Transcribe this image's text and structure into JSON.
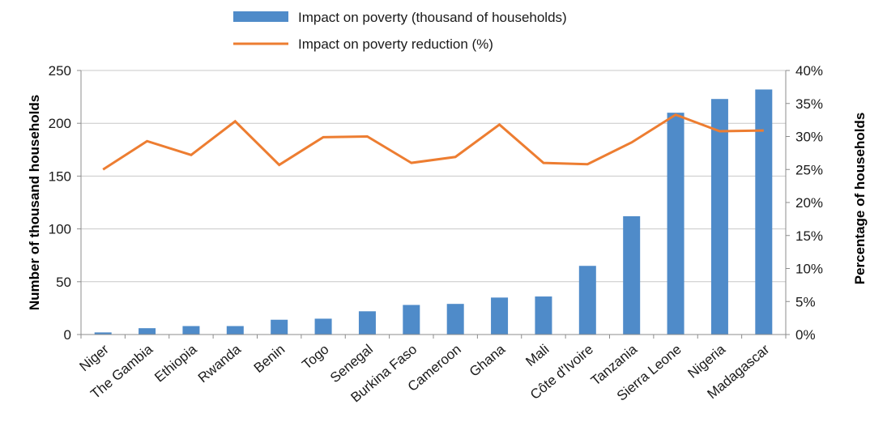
{
  "chart_data": {
    "type": "bar",
    "categories": [
      "Niger",
      "The Gambia",
      "Ethiopia",
      "Rwanda",
      "Benin",
      "Togo",
      "Senegal",
      "Burkina Faso",
      "Cameroon",
      "Ghana",
      "Mali",
      "Côte d'Ivoire",
      "Tanzania",
      "Sierra Leone",
      "Nigeria",
      "Madagascar"
    ],
    "series": [
      {
        "name": "Impact on poverty (thousand of households)",
        "type": "bar",
        "axis": "left",
        "color": "#4f8bc9",
        "values": [
          2,
          6,
          8,
          8,
          14,
          15,
          22,
          28,
          29,
          35,
          36,
          65,
          112,
          210,
          223,
          232
        ]
      },
      {
        "name": "Impact on poverty reduction (%)",
        "type": "line",
        "axis": "right",
        "color": "#ed7d31",
        "values": [
          25.0,
          29.3,
          27.2,
          32.3,
          25.7,
          29.9,
          30.0,
          26.0,
          26.9,
          31.8,
          26.0,
          25.8,
          29.1,
          33.3,
          30.8,
          30.9
        ]
      }
    ],
    "y_left": {
      "label": "Number of thousand households",
      "ylim": [
        0,
        250
      ],
      "ticks": [
        0,
        50,
        100,
        150,
        200,
        250
      ]
    },
    "y_right": {
      "label": "Percentage of households",
      "ylim": [
        0,
        40
      ],
      "ticks": [
        "0%",
        "5%",
        "10%",
        "15%",
        "20%",
        "25%",
        "30%",
        "35%",
        "40%"
      ]
    },
    "grid": true,
    "legend": "top-center"
  }
}
